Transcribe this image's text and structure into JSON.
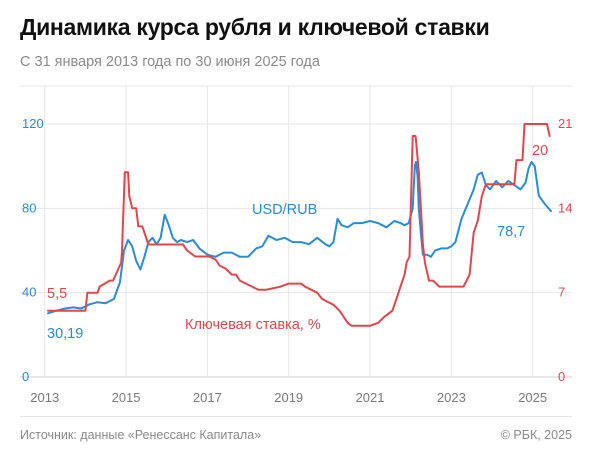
{
  "header": {
    "title": "Динамика курса рубля и ключевой ставки",
    "subtitle": "С 31 января 2013 года по 30 июня 2025 года"
  },
  "footer": {
    "source": "Источник: данные «Ренессанс Капитала»",
    "copyright": "© РБК, 2025"
  },
  "colors": {
    "usd": "#2b8cd6",
    "rate": "#e0474c",
    "grid": "#e6e6e6"
  },
  "chart_data": {
    "type": "line",
    "title": "Динамика курса рубля и ключевой ставки",
    "x_ticks": [
      "2013",
      "2015",
      "2017",
      "2019",
      "2021",
      "2023",
      "2025"
    ],
    "x_tick_values": [
      2013,
      2015,
      2017,
      2019,
      2021,
      2023,
      2025
    ],
    "xlim": [
      2013.08,
      2025.5
    ],
    "y_left": {
      "ticks": [
        "0",
        "40",
        "80",
        "120"
      ],
      "lim": [
        0,
        120
      ]
    },
    "y_right": {
      "ticks": [
        "0",
        "7",
        "14",
        "21"
      ],
      "lim": [
        0,
        21
      ]
    },
    "grid": true,
    "series": [
      {
        "name": "USD/RUB",
        "axis": "left",
        "label_text": "USD/RUB",
        "start_label": "30,19",
        "end_label": "78,7",
        "x": [
          2013.08,
          2013.3,
          2013.5,
          2013.7,
          2013.9,
          2014.1,
          2014.3,
          2014.5,
          2014.7,
          2014.85,
          2014.95,
          2015.05,
          2015.15,
          2015.25,
          2015.35,
          2015.45,
          2015.55,
          2015.65,
          2015.75,
          2015.85,
          2015.95,
          2016.05,
          2016.15,
          2016.25,
          2016.35,
          2016.5,
          2016.65,
          2016.8,
          2017.0,
          2017.2,
          2017.4,
          2017.6,
          2017.8,
          2018.0,
          2018.2,
          2018.35,
          2018.5,
          2018.7,
          2018.9,
          2019.1,
          2019.3,
          2019.5,
          2019.7,
          2019.9,
          2020.0,
          2020.1,
          2020.2,
          2020.3,
          2020.45,
          2020.6,
          2020.8,
          2021.0,
          2021.2,
          2021.4,
          2021.6,
          2021.75,
          2021.85,
          2021.95,
          2022.05,
          2022.1,
          2022.13,
          2022.17,
          2022.2,
          2022.25,
          2022.3,
          2022.4,
          2022.5,
          2022.6,
          2022.75,
          2022.9,
          2023.0,
          2023.1,
          2023.25,
          2023.4,
          2023.55,
          2023.65,
          2023.75,
          2023.85,
          2023.95,
          2024.1,
          2024.25,
          2024.4,
          2024.55,
          2024.7,
          2024.82,
          2024.9,
          2024.97,
          2025.05,
          2025.15,
          2025.3,
          2025.45
        ],
        "values": [
          30.19,
          31.5,
          32.5,
          33,
          32.5,
          34.5,
          35.5,
          35,
          37,
          45,
          60,
          65,
          62,
          55,
          51,
          57,
          64,
          66,
          63,
          66,
          77,
          72,
          66,
          64,
          65,
          64,
          65,
          61,
          58,
          57,
          59,
          59,
          57,
          57,
          61,
          62,
          67,
          65,
          66,
          64,
          64,
          63,
          66,
          63,
          62,
          64,
          75,
          72,
          71,
          73,
          73,
          74,
          73,
          71,
          74,
          73,
          72,
          73,
          80,
          100,
          102,
          95,
          80,
          68,
          58,
          58,
          57,
          60,
          61,
          61,
          62,
          64,
          75,
          82,
          89,
          96,
          97,
          91,
          89,
          93,
          90,
          93,
          91,
          89,
          92,
          99,
          102,
          100,
          86,
          82,
          78.7
        ]
      },
      {
        "name": "Ключевая ставка, %",
        "axis": "right",
        "label_text": "Ключевая ставка, %",
        "start_label": "5,5",
        "end_label": "20",
        "x": [
          2013.08,
          2013.7,
          2014.0,
          2014.05,
          2014.3,
          2014.35,
          2014.6,
          2014.68,
          2014.88,
          2014.9,
          2014.97,
          2015.05,
          2015.08,
          2015.15,
          2015.25,
          2015.3,
          2015.4,
          2015.5,
          2015.55,
          2015.7,
          2016.4,
          2016.5,
          2016.7,
          2016.75,
          2017.05,
          2017.2,
          2017.3,
          2017.45,
          2017.6,
          2017.7,
          2017.8,
          2018.1,
          2018.25,
          2018.45,
          2018.8,
          2019.0,
          2019.3,
          2019.4,
          2019.55,
          2019.7,
          2019.82,
          2019.95,
          2020.1,
          2020.25,
          2020.45,
          2020.55,
          2020.75,
          2021.0,
          2021.2,
          2021.35,
          2021.55,
          2021.65,
          2021.75,
          2021.85,
          2021.9,
          2021.97,
          2022.05,
          2022.12,
          2022.2,
          2022.25,
          2022.3,
          2022.35,
          2022.45,
          2022.55,
          2022.7,
          2023.3,
          2023.45,
          2023.55,
          2023.65,
          2023.75,
          2023.85,
          2023.95,
          2024.55,
          2024.6,
          2024.75,
          2024.8,
          2025.35,
          2025.42
        ],
        "values": [
          5.5,
          5.5,
          5.5,
          7,
          7,
          7.5,
          8,
          8,
          9.5,
          10.5,
          17,
          17,
          15,
          14,
          14,
          12.5,
          12.5,
          11.5,
          11,
          11,
          11,
          10.5,
          10,
          10,
          10,
          9.75,
          9.25,
          9,
          8.5,
          8.5,
          8,
          7.5,
          7.25,
          7.25,
          7.5,
          7.75,
          7.75,
          7.5,
          7.25,
          7,
          6.5,
          6.25,
          6,
          5.5,
          4.5,
          4.25,
          4.25,
          4.25,
          4.5,
          5,
          5.5,
          6.5,
          7.5,
          8.5,
          9.5,
          10,
          20,
          20,
          17,
          14,
          11,
          9.5,
          8,
          8,
          7.5,
          7.5,
          8.5,
          12,
          13,
          15,
          16,
          16,
          16,
          18,
          18,
          21,
          21,
          20
        ]
      }
    ]
  }
}
